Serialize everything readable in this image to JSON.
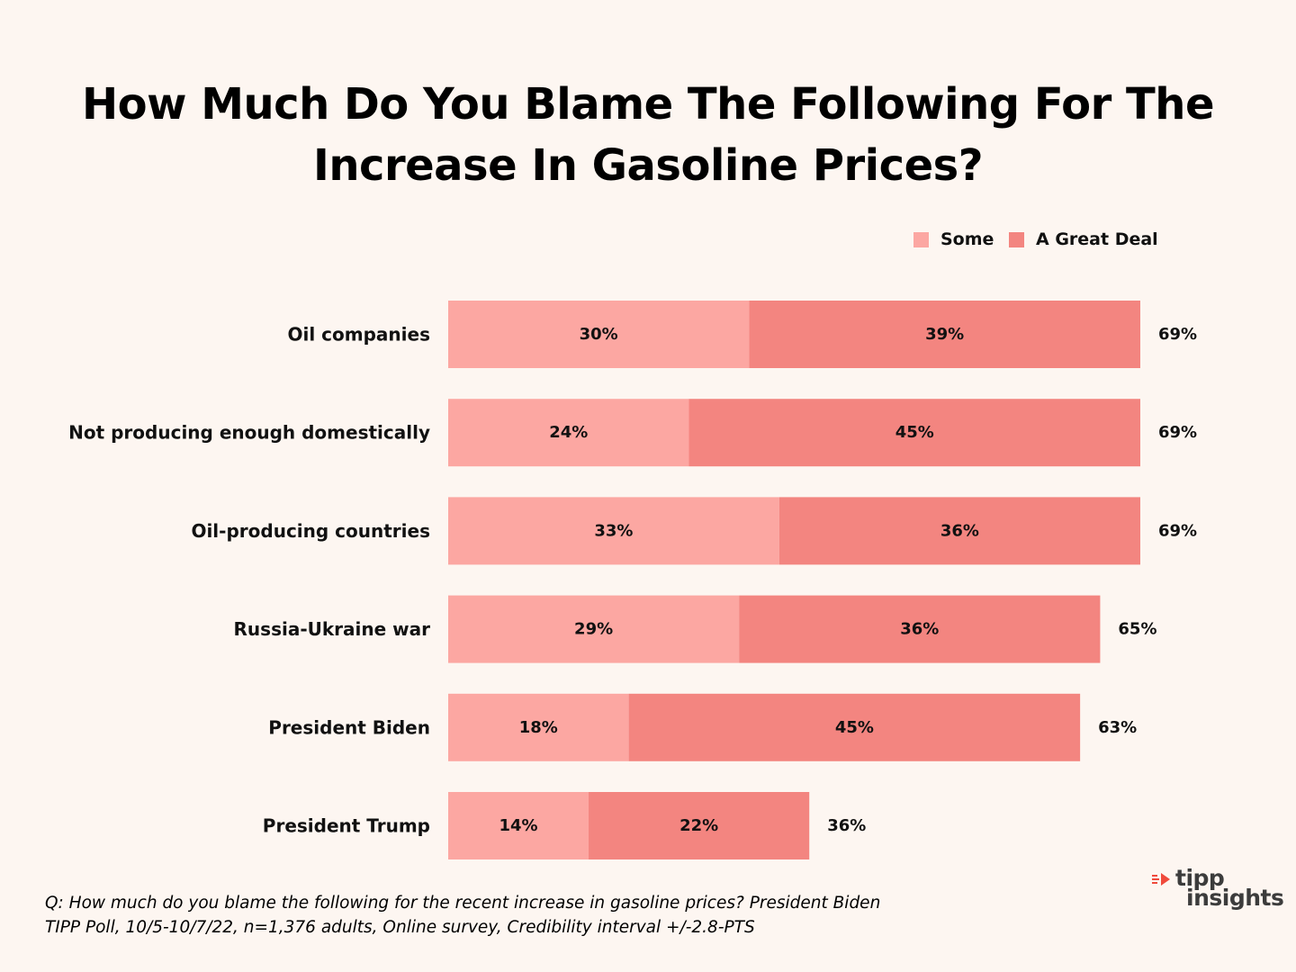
{
  "chart_data": {
    "type": "bar",
    "orientation": "horizontal",
    "stacked": true,
    "title_lines": [
      "How Much Do You Blame The Following For The",
      "Increase In Gasoline Prices?"
    ],
    "categories": [
      "Oil companies",
      "Not producing enough domestically",
      "Oil-producing countries",
      "Russia-Ukraine war",
      "President Biden",
      "President Trump"
    ],
    "series": [
      {
        "name": "Some",
        "color": "#fca7a2",
        "values": [
          30,
          24,
          33,
          29,
          18,
          14
        ]
      },
      {
        "name": "A Great Deal",
        "color": "#f38580",
        "values": [
          39,
          45,
          36,
          36,
          45,
          22
        ]
      }
    ],
    "totals": [
      69,
      69,
      69,
      65,
      63,
      36
    ],
    "value_suffix": "%",
    "xlim": [
      0,
      69
    ],
    "legend_position": "top-right",
    "grid": false
  },
  "footer": {
    "question": "Q: How much do you blame the following for the recent increase in gasoline prices? President Biden",
    "source": "TIPP Poll, 10/5-10/7/22, n=1,376 adults, Online survey, Credibility interval +/-2.8-PTS"
  },
  "logo": {
    "line1": "tipp",
    "line2": "insights",
    "accent_color": "#f04a3c",
    "text_color": "#3c3c3c"
  },
  "colors": {
    "background": "#fdf6f1"
  }
}
